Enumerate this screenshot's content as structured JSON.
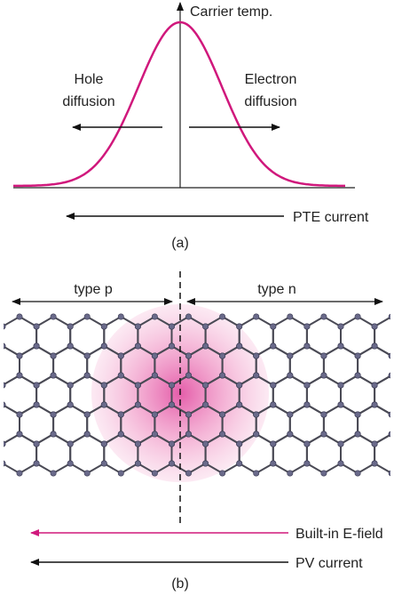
{
  "panel_a": {
    "axis_label": "Carrier temp.",
    "hole_diffusion": [
      "Hole",
      "diffusion"
    ],
    "electron_diffusion": [
      "Electron",
      "diffusion"
    ],
    "current_label": "PTE current",
    "caption": "(a)"
  },
  "panel_b": {
    "type_p": "type p",
    "type_n": "type n",
    "field_label": "Built-in E-field",
    "current_label": "PV current",
    "caption": "(b)"
  }
}
